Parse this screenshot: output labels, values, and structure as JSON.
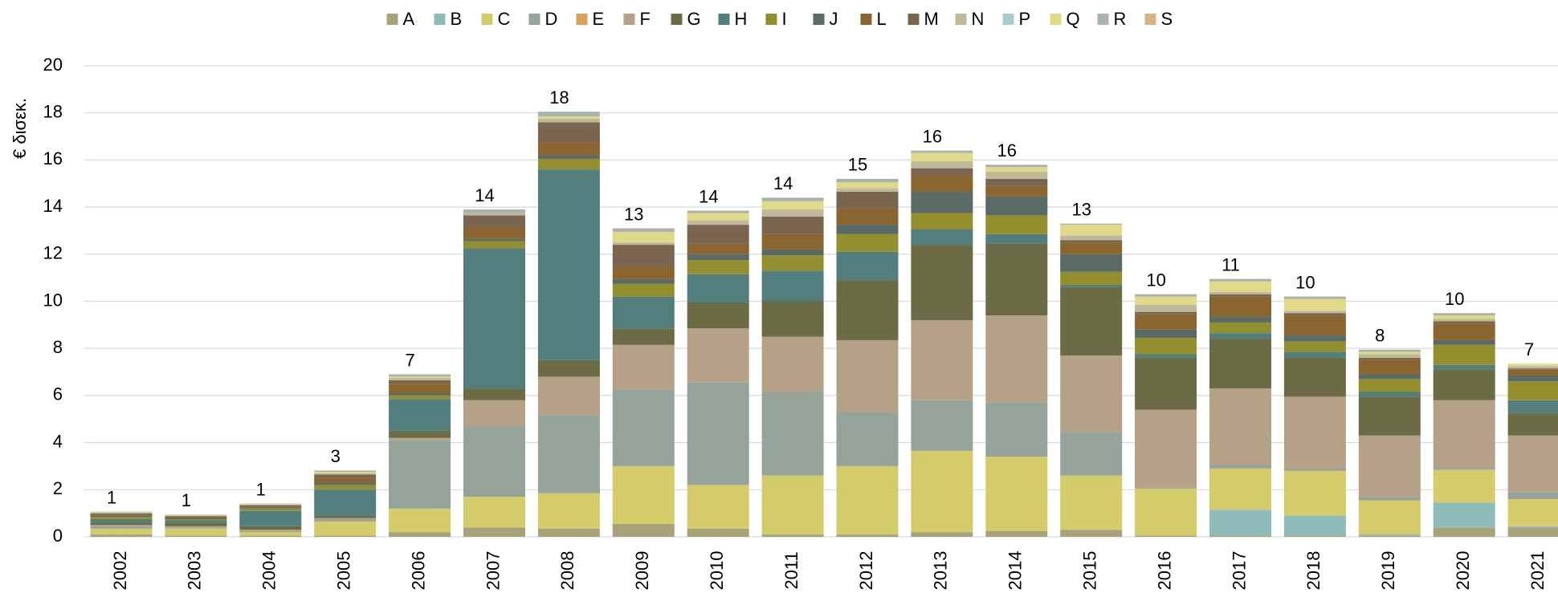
{
  "chart_data": {
    "type": "stacked_bar",
    "ylabel": "€ δισεκ.",
    "categories": [
      "2002",
      "2003",
      "2004",
      "2005",
      "2006",
      "2007",
      "2008",
      "2009",
      "2010",
      "2011",
      "2012",
      "2013",
      "2014",
      "2015",
      "2016",
      "2017",
      "2018",
      "2019",
      "2020",
      "2021"
    ],
    "ylim": [
      0,
      20
    ],
    "yticks": [
      0,
      2,
      4,
      6,
      8,
      10,
      12,
      14,
      16,
      18,
      20
    ],
    "grid": true,
    "legend": "top",
    "totals": [
      1,
      1,
      1,
      3,
      7,
      14,
      18,
      13,
      14,
      14,
      15,
      16,
      16,
      13,
      10,
      11,
      10,
      8,
      10,
      7
    ],
    "series": [
      {
        "name": "A",
        "color": "#a8a27a",
        "values": [
          0.1,
          0.05,
          0.05,
          0.05,
          0.2,
          0.4,
          0.35,
          0.55,
          0.35,
          0.1,
          0.1,
          0.2,
          0.25,
          0.3,
          0.05,
          0.05,
          0.05,
          0.05,
          0.4,
          0.4
        ]
      },
      {
        "name": "B",
        "color": "#8fbcbb",
        "values": [
          0,
          0,
          0,
          0,
          0,
          0,
          0,
          0,
          0,
          0,
          0,
          0,
          0,
          0,
          0,
          1.1,
          0.85,
          0.05,
          1.05,
          0.05
        ]
      },
      {
        "name": "C",
        "color": "#d4cc6a",
        "values": [
          0.25,
          0.3,
          0.15,
          0.6,
          1.0,
          1.3,
          1.5,
          2.45,
          1.85,
          2.5,
          2.9,
          3.45,
          3.15,
          2.3,
          2.0,
          1.75,
          1.9,
          1.45,
          1.4,
          1.15
        ]
      },
      {
        "name": "D",
        "color": "#95a39a",
        "values": [
          0.1,
          0.05,
          0.05,
          0.1,
          2.9,
          3.0,
          3.3,
          3.25,
          4.35,
          3.55,
          2.3,
          2.15,
          2.3,
          1.85,
          0.05,
          0.15,
          0.1,
          0.15,
          0.1,
          0.3
        ]
      },
      {
        "name": "E",
        "color": "#d9a05b",
        "values": [
          0,
          0,
          0,
          0,
          0,
          0,
          0,
          0,
          0,
          0,
          0,
          0,
          0,
          0,
          0,
          0,
          0,
          0,
          0,
          0
        ]
      },
      {
        "name": "F",
        "color": "#b5a088",
        "values": [
          0.05,
          0.05,
          0.05,
          0.05,
          0.1,
          1.1,
          1.65,
          1.9,
          2.3,
          2.35,
          3.05,
          3.4,
          3.7,
          3.25,
          3.3,
          3.25,
          3.05,
          2.6,
          2.85,
          2.4
        ]
      },
      {
        "name": "G",
        "color": "#6b6b45",
        "values": [
          0.1,
          0.15,
          0.15,
          0.1,
          0.3,
          0.5,
          0.7,
          0.7,
          1.1,
          1.5,
          2.55,
          3.2,
          3.05,
          2.9,
          2.2,
          2.1,
          1.65,
          1.65,
          1.3,
          0.95
        ]
      },
      {
        "name": "H",
        "color": "#527f7d",
        "values": [
          0.15,
          0.1,
          0.65,
          1.1,
          1.35,
          5.95,
          8.1,
          1.35,
          1.2,
          1.3,
          1.2,
          0.65,
          0.4,
          0.1,
          0.15,
          0.25,
          0.25,
          0.2,
          0.2,
          0.55
        ]
      },
      {
        "name": "I",
        "color": "#948f2e",
        "values": [
          0.1,
          0.05,
          0.1,
          0.2,
          0.15,
          0.3,
          0.45,
          0.55,
          0.6,
          0.65,
          0.75,
          0.7,
          0.8,
          0.55,
          0.7,
          0.45,
          0.45,
          0.55,
          0.85,
          0.8
        ]
      },
      {
        "name": "J",
        "color": "#5a6a66",
        "values": [
          0.05,
          0.05,
          0.05,
          0.1,
          0.1,
          0.1,
          0.15,
          0.2,
          0.25,
          0.25,
          0.4,
          0.9,
          0.8,
          0.75,
          0.35,
          0.25,
          0.25,
          0.2,
          0.2,
          0.25
        ]
      },
      {
        "name": "L",
        "color": "#8a6530",
        "values": [
          0.05,
          0.05,
          0.05,
          0.2,
          0.4,
          0.5,
          0.55,
          0.5,
          0.45,
          0.65,
          0.7,
          0.7,
          0.45,
          0.5,
          0.65,
          0.85,
          0.85,
          0.6,
          0.7,
          0.25
        ]
      },
      {
        "name": "M",
        "color": "#7a6650",
        "values": [
          0.05,
          0.03,
          0.05,
          0.15,
          0.15,
          0.5,
          0.85,
          0.95,
          0.8,
          0.75,
          0.7,
          0.3,
          0.3,
          0.1,
          0.1,
          0.1,
          0.1,
          0.1,
          0.1,
          0.05
        ]
      },
      {
        "name": "N",
        "color": "#bdb99a",
        "values": [
          0.02,
          0.02,
          0.02,
          0.05,
          0.1,
          0.1,
          0.15,
          0.1,
          0.2,
          0.3,
          0.15,
          0.3,
          0.3,
          0.2,
          0.3,
          0.1,
          0.1,
          0.15,
          0.1,
          0.1
        ]
      },
      {
        "name": "P",
        "color": "#a8cccc",
        "values": [
          0,
          0,
          0,
          0,
          0,
          0,
          0,
          0,
          0,
          0,
          0,
          0,
          0,
          0,
          0,
          0,
          0,
          0,
          0,
          0
        ]
      },
      {
        "name": "Q",
        "color": "#e0da88",
        "values": [
          0.03,
          0.02,
          0.02,
          0.05,
          0.05,
          0,
          0.1,
          0.45,
          0.3,
          0.35,
          0.25,
          0.35,
          0.2,
          0.45,
          0.35,
          0.45,
          0.5,
          0.1,
          0.15,
          0.1
        ]
      },
      {
        "name": "R",
        "color": "#a9b3ad",
        "values": [
          0.02,
          0.02,
          0.02,
          0.05,
          0.1,
          0.15,
          0.2,
          0.15,
          0.1,
          0.15,
          0.15,
          0.1,
          0.1,
          0.05,
          0.1,
          0.1,
          0.1,
          0.1,
          0.1,
          0
        ]
      },
      {
        "name": "S",
        "color": "#d6b483",
        "values": [
          0,
          0,
          0,
          0.02,
          0,
          0,
          0,
          0,
          0,
          0,
          0,
          0,
          0,
          0,
          0,
          0,
          0,
          0,
          0,
          0
        ]
      }
    ]
  }
}
